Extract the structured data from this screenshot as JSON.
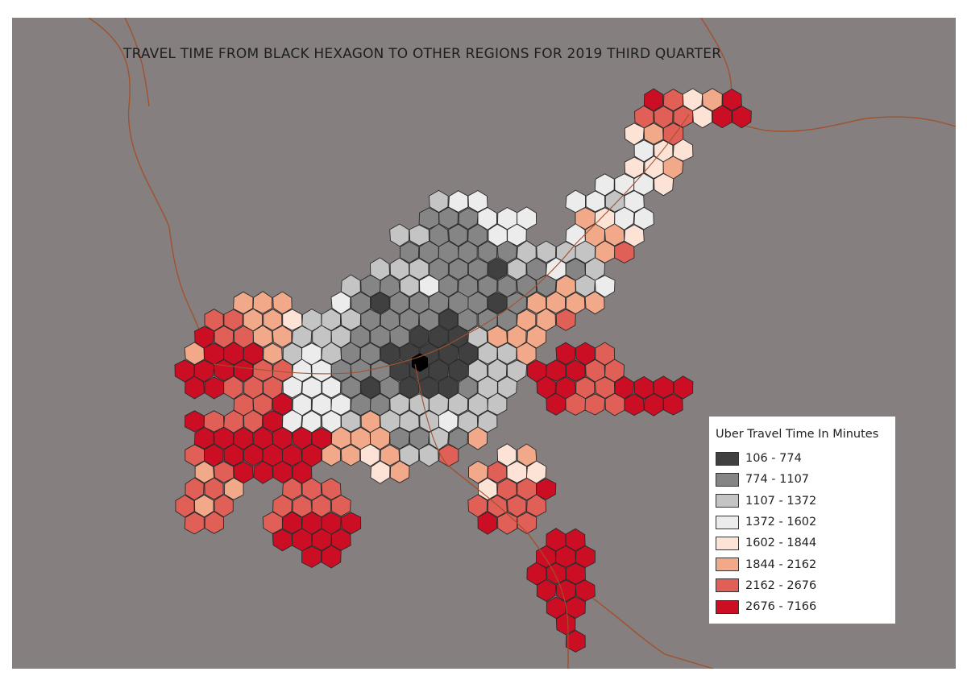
{
  "map": {
    "title": "TRAVEL TIME FROM BLACK HEXAGON TO OTHER REGIONS FOR 2019 THIRD QUARTER",
    "background_color": "#857f80",
    "road_color": "#a0522d",
    "origin_color": "#000000"
  },
  "legend": {
    "title": "Uber Travel Time In Minutes",
    "classes": [
      {
        "label": "106 - 774",
        "color": "#404040"
      },
      {
        "label": "774 - 1107",
        "color": "#858585"
      },
      {
        "label": "1107 - 1372",
        "color": "#c4c4c4"
      },
      {
        "label": "1372 - 1602",
        "color": "#ececec"
      },
      {
        "label": "1602 - 1844",
        "color": "#fde3d6"
      },
      {
        "label": "1844 - 2162",
        "color": "#f2a98a"
      },
      {
        "label": "2162 - 2676",
        "color": "#e05f56"
      },
      {
        "label": "2676 - 7166",
        "color": "#cc0e24"
      }
    ]
  }
}
